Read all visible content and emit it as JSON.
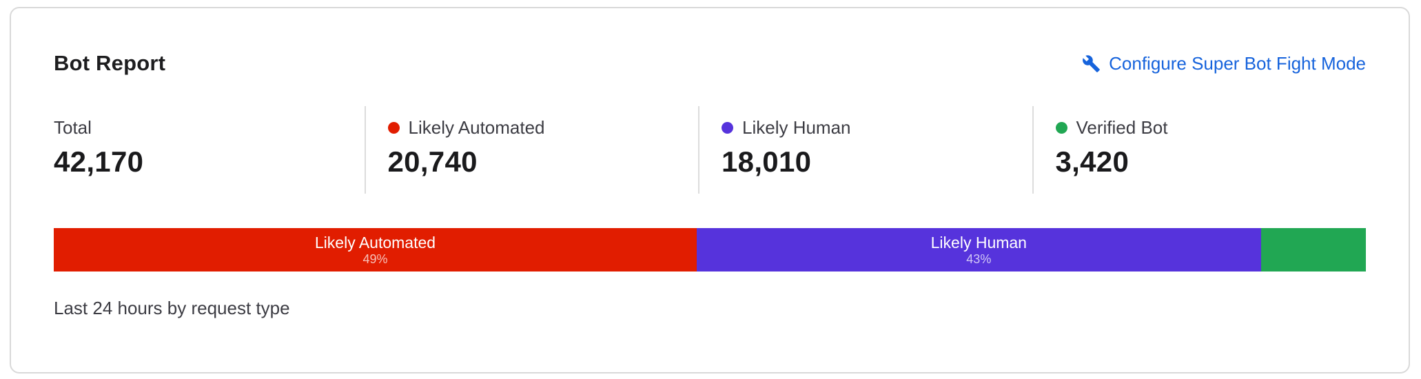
{
  "card": {
    "title": "Bot Report",
    "configure_link_label": "Configure Super Bot Fight Mode",
    "caption": "Last 24 hours by request type",
    "link_color": "#1663dc",
    "border_color": "#d9d9d9",
    "background": "#ffffff"
  },
  "stats": [
    {
      "label": "Total",
      "value": "42,170"
    },
    {
      "label": "Likely Automated",
      "value": "20,740",
      "color": "#e11d00"
    },
    {
      "label": "Likely Human",
      "value": "18,010",
      "color": "#5633dc"
    },
    {
      "label": "Verified Bot",
      "value": "3,420",
      "color": "#21a753"
    }
  ],
  "chart_data": {
    "type": "bar",
    "subtype": "stacked-horizontal-single-row",
    "title": "Bot Report",
    "caption": "Last 24 hours by request type",
    "categories": [
      "Likely Automated",
      "Likely Human",
      "Verified Bot"
    ],
    "values": [
      20740,
      18010,
      3420
    ],
    "total": 42170,
    "legend_position": "top-stats-row",
    "segments": [
      {
        "label": "Likely Automated",
        "percent": 49,
        "percent_label": "49%",
        "color": "#e11d00"
      },
      {
        "label": "Likely Human",
        "percent": 43,
        "percent_label": "43%",
        "color": "#5633dc"
      },
      {
        "label": "",
        "percent": 8,
        "percent_label": "",
        "color": "#21a753"
      }
    ]
  }
}
